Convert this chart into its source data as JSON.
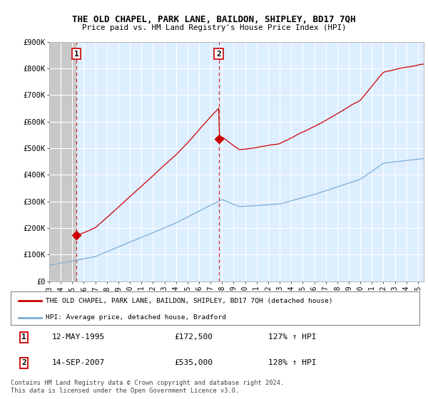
{
  "title": "THE OLD CHAPEL, PARK LANE, BAILDON, SHIPLEY, BD17 7QH",
  "subtitle": "Price paid vs. HM Land Registry's House Price Index (HPI)",
  "ylabel_ticks": [
    "£0",
    "£100K",
    "£200K",
    "£300K",
    "£400K",
    "£500K",
    "£600K",
    "£700K",
    "£800K",
    "£900K"
  ],
  "ytick_values": [
    0,
    100000,
    200000,
    300000,
    400000,
    500000,
    600000,
    700000,
    800000,
    900000
  ],
  "ylim": [
    0,
    900000
  ],
  "xlim_start": 1993.0,
  "xlim_end": 2025.5,
  "sale1_x": 1995.36,
  "sale1_y": 172500,
  "sale2_x": 2007.71,
  "sale2_y": 535000,
  "sale1_date": "12-MAY-1995",
  "sale1_price": "£172,500",
  "sale1_hpi": "127% ↑ HPI",
  "sale2_date": "14-SEP-2007",
  "sale2_price": "£535,000",
  "sale2_hpi": "128% ↑ HPI",
  "legend_line1": "THE OLD CHAPEL, PARK LANE, BAILDON, SHIPLEY, BD17 7QH (detached house)",
  "legend_line2": "HPI: Average price, detached house, Bradford",
  "footer1": "Contains HM Land Registry data © Crown copyright and database right 2024.",
  "footer2": "This data is licensed under the Open Government Licence v3.0.",
  "line_color_red": "#cc0000",
  "line_color_blue": "#7aadd4",
  "plot_bg": "#ddeeff",
  "hatch_bg": "#d0d0d0",
  "grid_color": "#ffffff"
}
